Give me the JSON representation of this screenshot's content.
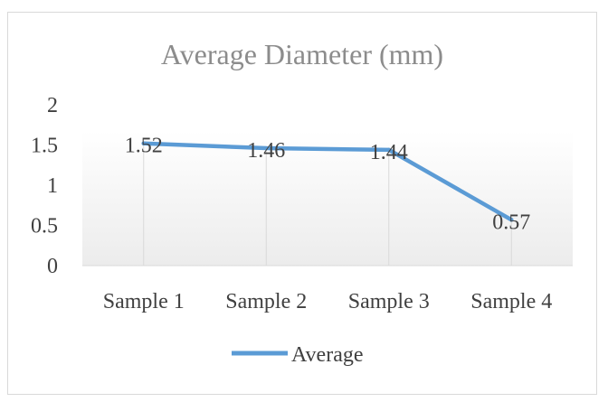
{
  "chart_data": {
    "type": "line",
    "title": "Average Diameter (mm)",
    "categories": [
      "Sample 1",
      "Sample 2",
      "Sample 3",
      "Sample 4"
    ],
    "series": [
      {
        "name": "Average",
        "values": [
          1.52,
          1.46,
          1.44,
          0.57
        ],
        "data_labels": [
          "1.52",
          "1.46",
          "1.44",
          "0.57"
        ],
        "color": "#5b9bd5"
      }
    ],
    "ylim": [
      0,
      2
    ],
    "yticks": [
      "0",
      "0.5",
      "1",
      "1.5",
      "2"
    ],
    "xlabel": "",
    "ylabel": "",
    "grid": "vertical",
    "legend_position": "bottom"
  }
}
